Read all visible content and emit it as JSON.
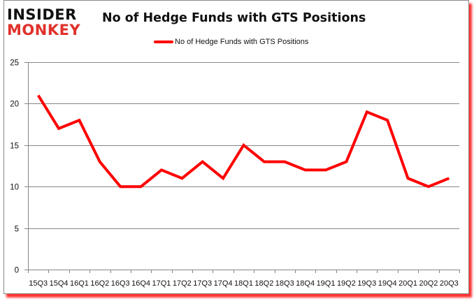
{
  "brand": {
    "line1": "INSIDER",
    "line2": "MONKEY",
    "line1_color": "#111111",
    "line2_color": "#e0302a"
  },
  "chart_data": {
    "type": "line",
    "title": "No of Hedge Funds with GTS Positions",
    "xlabel": "",
    "ylabel": "",
    "categories": [
      "15Q3",
      "15Q4",
      "16Q1",
      "16Q2",
      "16Q3",
      "16Q4",
      "17Q1",
      "17Q2",
      "17Q3",
      "17Q4",
      "18Q1",
      "18Q2",
      "18Q3",
      "18Q4",
      "19Q1",
      "19Q2",
      "19Q3",
      "19Q4",
      "20Q1",
      "20Q2",
      "20Q3"
    ],
    "series": [
      {
        "name": "No of Hedge Funds with GTS Positions",
        "color": "#ff0000",
        "values": [
          21,
          17,
          18,
          13,
          10,
          10,
          12,
          11,
          13,
          11,
          15,
          13,
          13,
          12,
          12,
          13,
          19,
          18,
          11,
          10,
          11
        ]
      }
    ],
    "ylim": [
      0,
      25
    ],
    "yticks": [
      0,
      5,
      10,
      15,
      20,
      25
    ],
    "grid": true,
    "legend_position": "top"
  }
}
